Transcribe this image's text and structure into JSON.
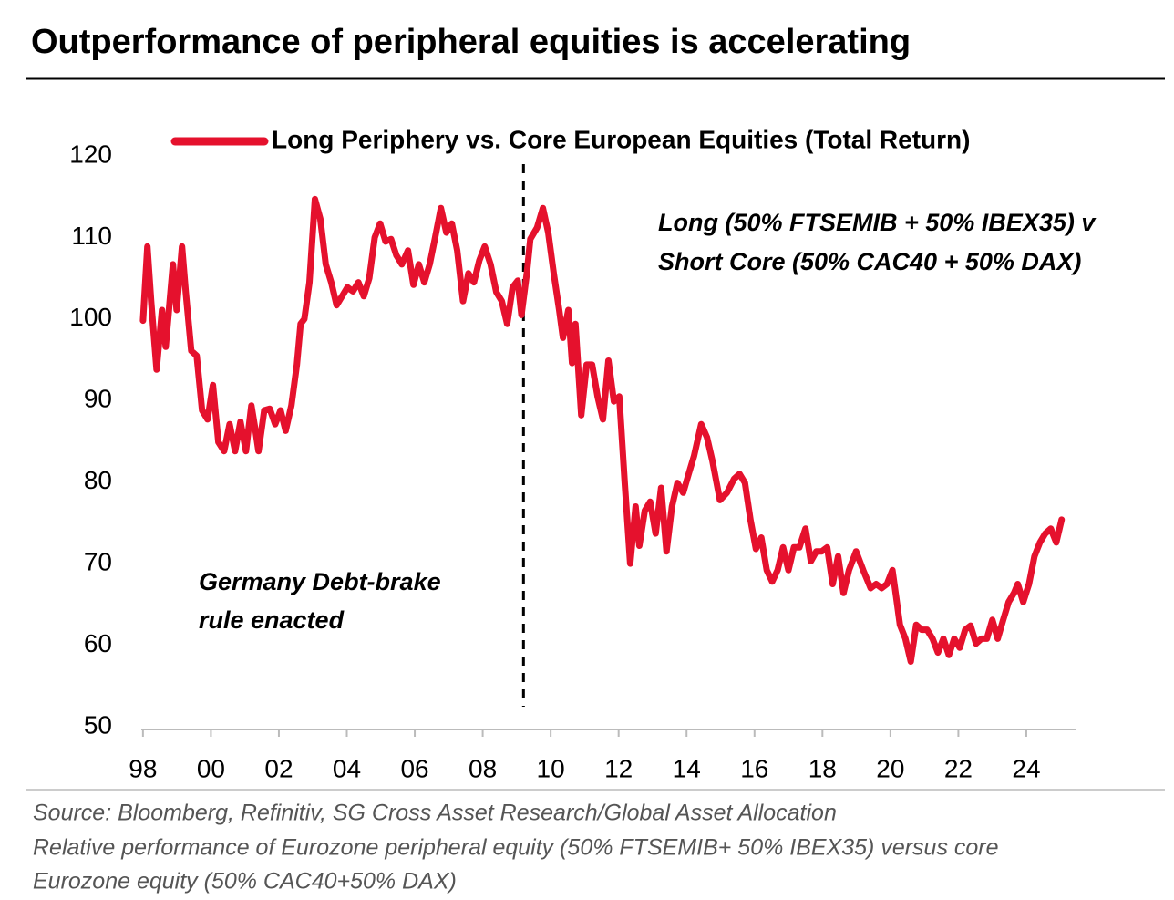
{
  "chart_data": {
    "type": "line",
    "title": "Outperformance of peripheral equities is accelerating",
    "annotations": [
      "Long (50% FTSEMIB + 50% IBEX35) v",
      "Short Core (50% CAC40 + 50% DAX)",
      "Germany Debt-brake",
      "rule enacted"
    ],
    "source": [
      "Source: Bloomberg, Refinitiv, SG Cross Asset Research/Global Asset Allocation",
      "Relative performance of Eurozone peripheral equity (50% FTSEMIB+ 50% IBEX35) versus core",
      "Eurozone equity (50% CAC40+50% DAX)"
    ],
    "vline": 2009.2,
    "xlim": [
      1997.95,
      2025.45
    ],
    "xticks": [
      {
        "value": 1998,
        "label": "98"
      },
      {
        "value": 2000,
        "label": "00"
      },
      {
        "value": 2002,
        "label": "02"
      },
      {
        "value": 2004,
        "label": "04"
      },
      {
        "value": 2006,
        "label": "06"
      },
      {
        "value": 2008,
        "label": "08"
      },
      {
        "value": 2010,
        "label": "10"
      },
      {
        "value": 2012,
        "label": "12"
      },
      {
        "value": 2014,
        "label": "14"
      },
      {
        "value": 2016,
        "label": "16"
      },
      {
        "value": 2018,
        "label": "18"
      },
      {
        "value": 2020,
        "label": "20"
      },
      {
        "value": 2022,
        "label": "22"
      },
      {
        "value": 2024,
        "label": "24"
      }
    ],
    "ylim": [
      50,
      120
    ],
    "yticks": [
      50,
      60,
      70,
      80,
      90,
      100,
      110,
      120
    ],
    "grid": false,
    "x": [
      1998.0,
      1998.13,
      1998.24,
      1998.4,
      1998.56,
      1998.67,
      1998.88,
      1998.99,
      1999.15,
      1999.26,
      1999.42,
      1999.58,
      1999.74,
      1999.9,
      2000.06,
      2000.22,
      2000.39,
      2000.55,
      2000.71,
      2000.87,
      2001.03,
      2001.19,
      2001.3,
      2001.4,
      2001.57,
      2001.73,
      2001.89,
      2002.05,
      2002.2,
      2002.37,
      2002.53,
      2002.64,
      2002.75,
      2002.9,
      2003.06,
      2003.22,
      2003.38,
      2003.54,
      2003.7,
      2003.86,
      2004.02,
      2004.18,
      2004.34,
      2004.5,
      2004.66,
      2004.82,
      2004.98,
      2005.14,
      2005.3,
      2005.46,
      2005.62,
      2005.8,
      2005.96,
      2006.12,
      2006.28,
      2006.44,
      2006.6,
      2006.77,
      2006.93,
      2007.09,
      2007.25,
      2007.42,
      2007.58,
      2007.74,
      2007.9,
      2008.06,
      2008.23,
      2008.4,
      2008.56,
      2008.72,
      2008.88,
      2009.03,
      2009.14,
      2009.3,
      2009.4,
      2009.6,
      2009.77,
      2009.93,
      2010.09,
      2010.25,
      2010.36,
      2010.52,
      2010.63,
      2010.73,
      2010.9,
      2011.06,
      2011.22,
      2011.38,
      2011.54,
      2011.7,
      2011.86,
      2012.02,
      2012.18,
      2012.34,
      2012.5,
      2012.61,
      2012.77,
      2012.93,
      2013.09,
      2013.25,
      2013.41,
      2013.57,
      2013.73,
      2013.9,
      2014.06,
      2014.22,
      2014.43,
      2014.6,
      2014.76,
      2014.98,
      2015.19,
      2015.4,
      2015.56,
      2015.72,
      2015.88,
      2016.04,
      2016.2,
      2016.36,
      2016.52,
      2016.68,
      2016.84,
      2017.0,
      2017.16,
      2017.32,
      2017.5,
      2017.66,
      2017.82,
      2017.98,
      2018.14,
      2018.3,
      2018.46,
      2018.62,
      2018.78,
      2018.99,
      2019.2,
      2019.42,
      2019.58,
      2019.74,
      2019.9,
      2020.06,
      2020.17,
      2020.28,
      2020.44,
      2020.6,
      2020.76,
      2020.92,
      2021.08,
      2021.24,
      2021.4,
      2021.56,
      2021.72,
      2021.88,
      2022.04,
      2022.2,
      2022.36,
      2022.52,
      2022.68,
      2022.84,
      2023.0,
      2023.16,
      2023.32,
      2023.48,
      2023.64,
      2023.75,
      2023.91,
      2024.08,
      2024.24,
      2024.4,
      2024.56,
      2024.72,
      2024.88,
      2025.04
    ],
    "series": [
      {
        "name": "Long Periphery vs. Core European Equities (Total Return)",
        "color": "#e5112d",
        "values": [
          99.8,
          108.9,
          102.2,
          93.8,
          101.1,
          96.6,
          106.7,
          101.1,
          108.9,
          103.3,
          96.1,
          95.5,
          88.8,
          87.7,
          91.9,
          84.9,
          83.8,
          87.1,
          83.8,
          87.4,
          83.8,
          89.4,
          86.6,
          83.8,
          88.8,
          89.0,
          87.1,
          88.8,
          86.3,
          89.4,
          94.4,
          99.4,
          100.0,
          104.5,
          114.7,
          112.3,
          106.7,
          104.5,
          101.7,
          102.8,
          103.9,
          103.4,
          104.5,
          102.8,
          105.0,
          110.0,
          111.7,
          109.5,
          109.8,
          107.8,
          106.7,
          108.4,
          104.2,
          106.7,
          104.5,
          106.7,
          110.0,
          113.6,
          110.6,
          111.7,
          108.4,
          102.2,
          105.6,
          104.5,
          107.2,
          108.9,
          106.7,
          103.3,
          102.2,
          99.4,
          103.9,
          104.7,
          100.5,
          105.6,
          109.8,
          111.2,
          113.6,
          110.6,
          105.6,
          101.1,
          97.7,
          101.1,
          94.6,
          99.4,
          88.2,
          94.4,
          94.4,
          90.5,
          87.7,
          94.9,
          89.9,
          90.5,
          79.9,
          70.0,
          77.0,
          72.2,
          76.5,
          77.6,
          73.7,
          79.3,
          71.5,
          77.0,
          79.9,
          78.7,
          81.0,
          83.2,
          87.1,
          85.5,
          82.6,
          77.8,
          78.7,
          80.4,
          81.0,
          79.9,
          75.4,
          71.8,
          73.2,
          69.2,
          67.8,
          69.2,
          72.0,
          69.2,
          72.0,
          72.0,
          74.3,
          70.3,
          71.5,
          71.5,
          72.0,
          67.5,
          70.9,
          66.4,
          69.2,
          71.5,
          69.2,
          67.0,
          67.5,
          67.0,
          67.5,
          69.2,
          65.9,
          62.5,
          60.8,
          58.0,
          62.5,
          61.9,
          61.9,
          60.8,
          59.1,
          60.8,
          58.8,
          60.8,
          59.7,
          61.9,
          62.4,
          60.2,
          60.8,
          60.8,
          63.1,
          60.8,
          63.1,
          65.3,
          66.4,
          67.5,
          65.3,
          67.5,
          70.9,
          72.6,
          73.7,
          74.3,
          72.6,
          75.4
        ]
      }
    ]
  }
}
